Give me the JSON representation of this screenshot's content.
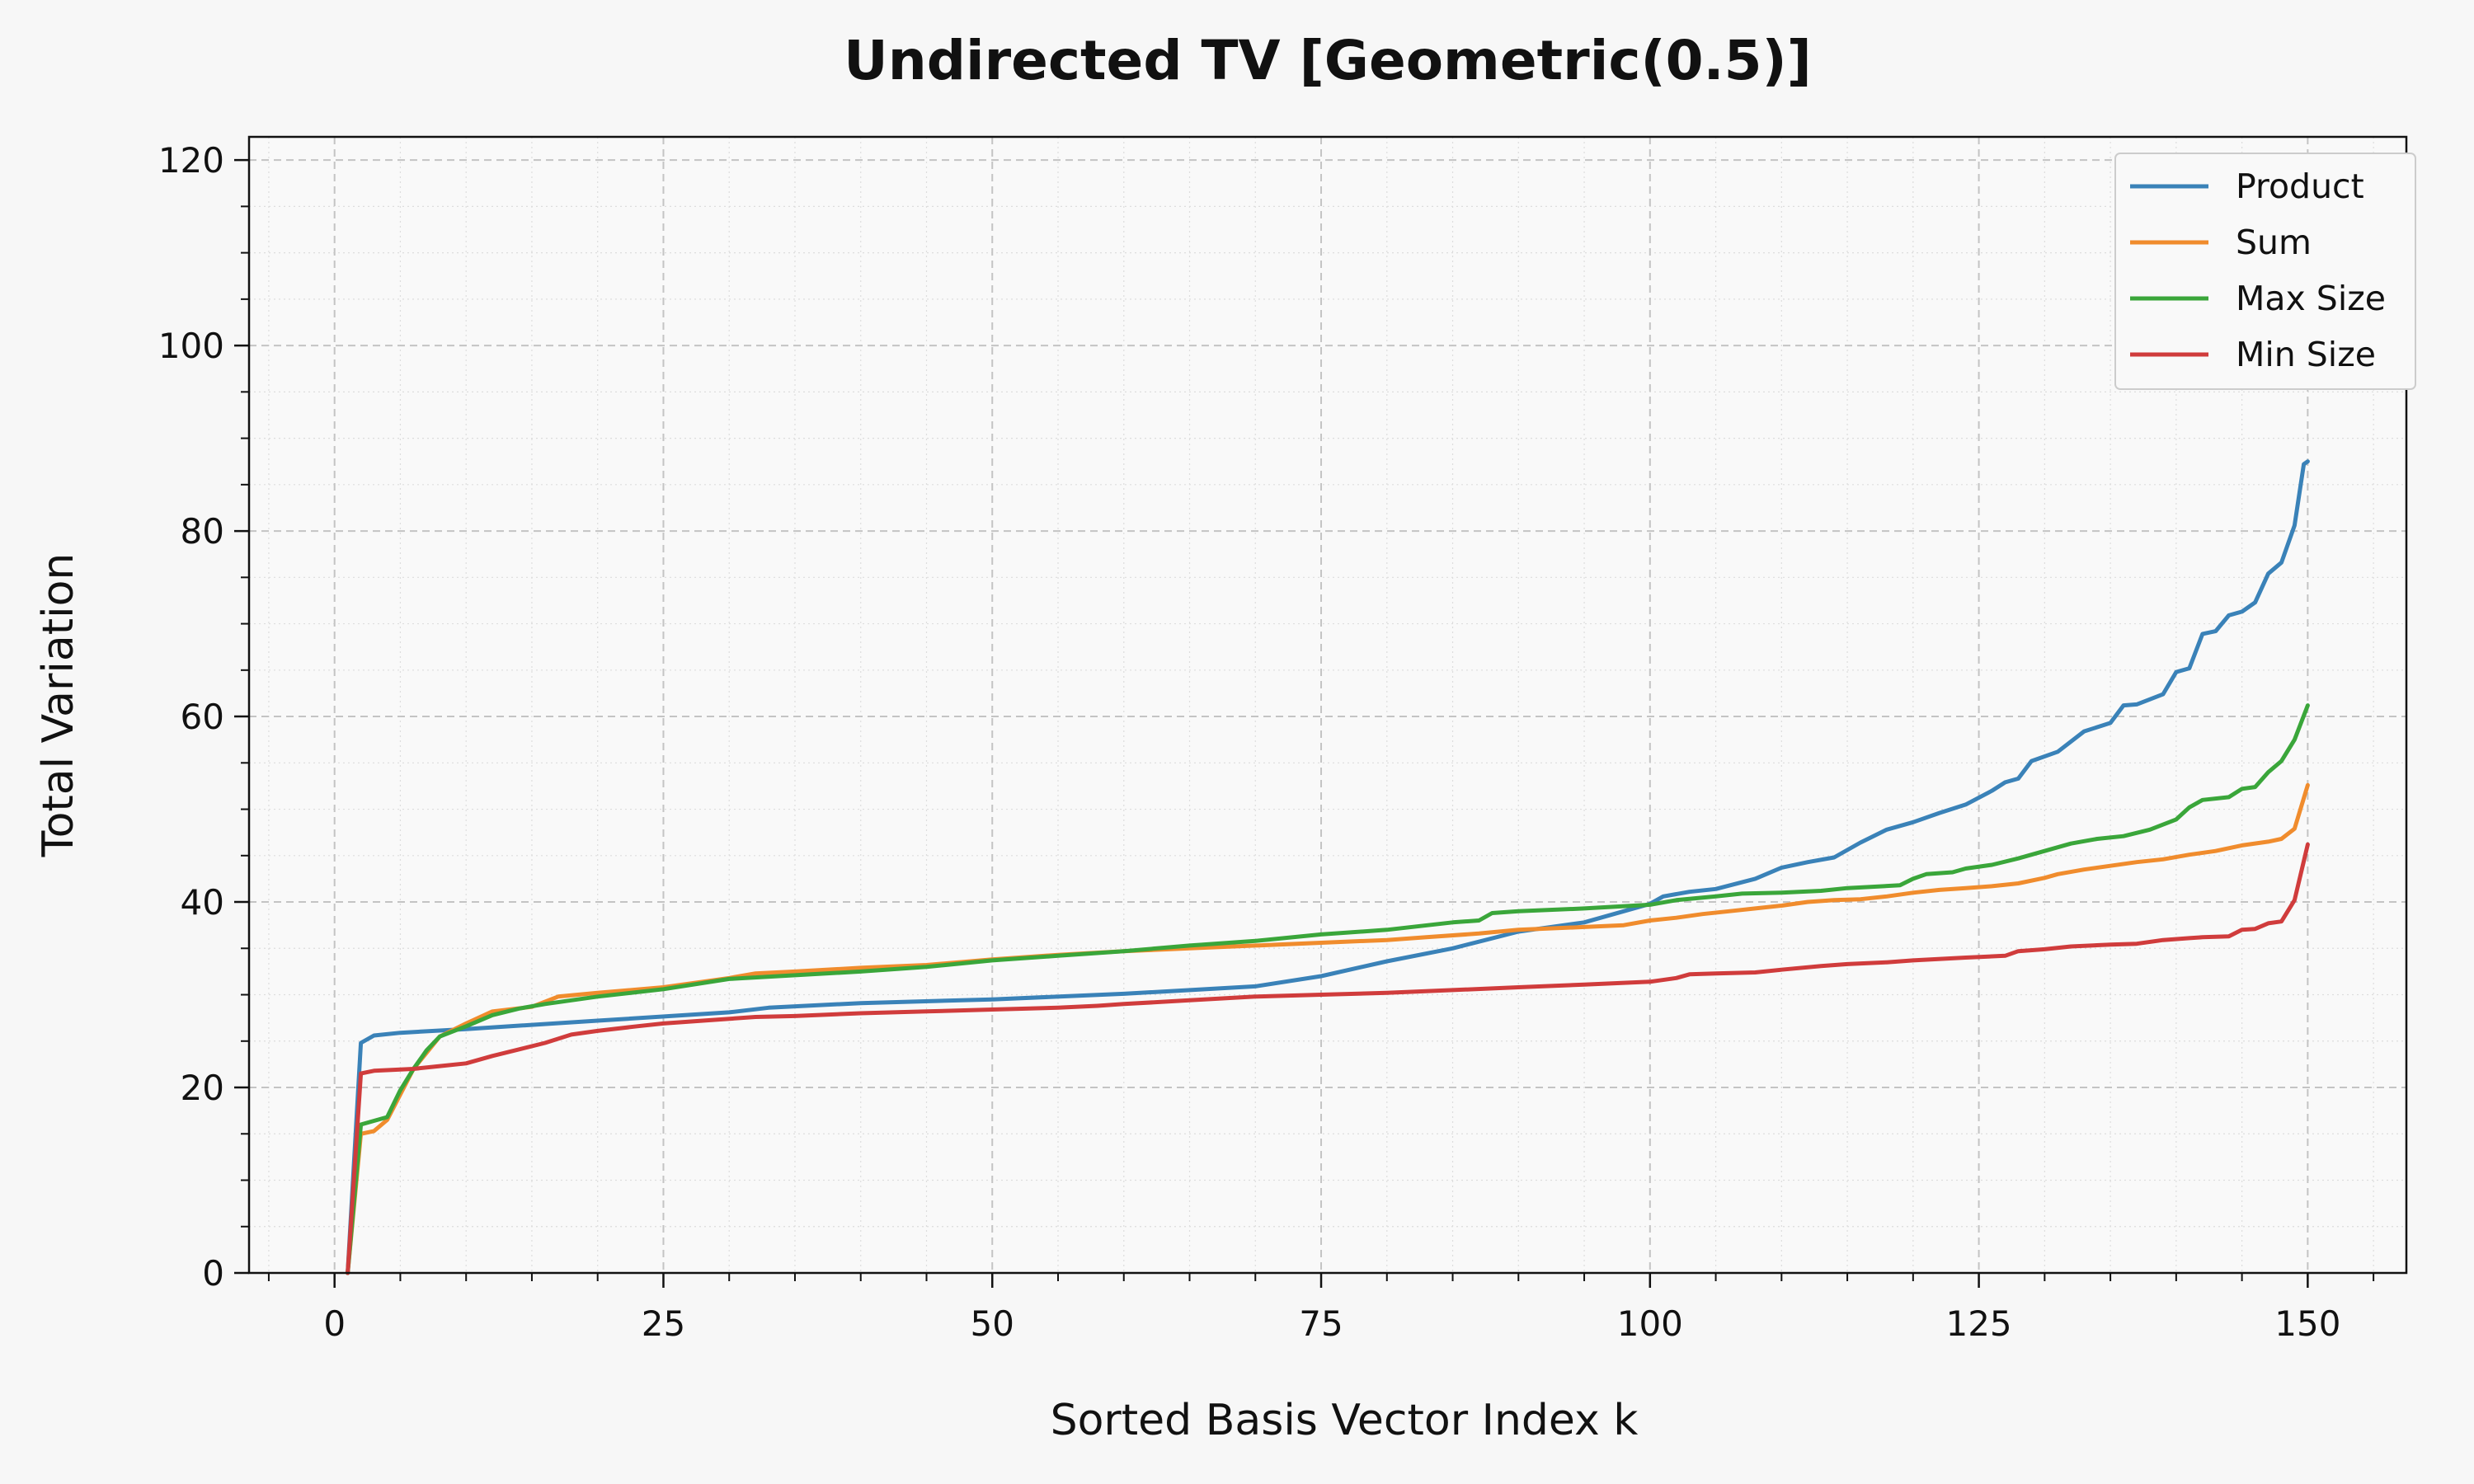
{
  "chart_data": {
    "type": "line",
    "title": "Undirected TV [Geometric(0.5)]",
    "xlabel": "Sorted Basis Vector Index k",
    "ylabel": "Total Variation",
    "xlim": [
      -6.5,
      157.5
    ],
    "ylim": [
      0,
      122.5
    ],
    "x_ticks": [
      0,
      25,
      50,
      75,
      100,
      125,
      150
    ],
    "y_ticks": [
      0,
      20,
      40,
      60,
      80,
      100,
      120
    ],
    "grid": true,
    "legend_position": "top-right",
    "series": [
      {
        "name": "Product",
        "color": "#3a82b8",
        "points": [
          [
            1,
            0
          ],
          [
            2,
            24.8
          ],
          [
            3,
            25.6
          ],
          [
            5,
            25.9
          ],
          [
            10,
            26.3
          ],
          [
            20,
            27.2
          ],
          [
            30,
            28.1
          ],
          [
            33,
            28.6
          ],
          [
            40,
            29.1
          ],
          [
            50,
            29.5
          ],
          [
            60,
            30.1
          ],
          [
            70,
            30.9
          ],
          [
            75,
            32.0
          ],
          [
            80,
            33.6
          ],
          [
            85,
            35.0
          ],
          [
            90,
            36.8
          ],
          [
            95,
            37.8
          ],
          [
            100,
            39.8
          ],
          [
            101,
            40.6
          ],
          [
            103,
            41.1
          ],
          [
            105,
            41.4
          ],
          [
            108,
            42.5
          ],
          [
            110,
            43.7
          ],
          [
            112,
            44.3
          ],
          [
            114,
            44.8
          ],
          [
            116,
            46.4
          ],
          [
            118,
            47.8
          ],
          [
            120,
            48.6
          ],
          [
            122,
            49.6
          ],
          [
            124,
            50.5
          ],
          [
            126,
            52.0
          ],
          [
            127,
            52.9
          ],
          [
            128,
            53.3
          ],
          [
            129,
            55.2
          ],
          [
            131,
            56.2
          ],
          [
            133,
            58.4
          ],
          [
            135,
            59.3
          ],
          [
            136,
            61.2
          ],
          [
            137,
            61.3
          ],
          [
            139,
            62.4
          ],
          [
            140,
            64.8
          ],
          [
            141,
            65.2
          ],
          [
            142,
            68.9
          ],
          [
            143,
            69.2
          ],
          [
            144,
            70.9
          ],
          [
            145,
            71.3
          ],
          [
            146,
            72.3
          ],
          [
            147,
            75.4
          ],
          [
            148,
            76.6
          ],
          [
            149,
            80.6
          ],
          [
            149.7,
            87.2
          ],
          [
            150,
            87.5
          ]
        ]
      },
      {
        "name": "Sum",
        "color": "#f08c2d",
        "points": [
          [
            1,
            0
          ],
          [
            2,
            15.0
          ],
          [
            3,
            15.3
          ],
          [
            4,
            16.5
          ],
          [
            6,
            22.0
          ],
          [
            8,
            25.5
          ],
          [
            10,
            26.9
          ],
          [
            12,
            28.2
          ],
          [
            15,
            28.7
          ],
          [
            17,
            29.8
          ],
          [
            20,
            30.2
          ],
          [
            25,
            30.8
          ],
          [
            30,
            31.8
          ],
          [
            32,
            32.3
          ],
          [
            35,
            32.5
          ],
          [
            40,
            32.9
          ],
          [
            45,
            33.2
          ],
          [
            50,
            33.8
          ],
          [
            55,
            34.3
          ],
          [
            60,
            34.7
          ],
          [
            65,
            35.0
          ],
          [
            70,
            35.3
          ],
          [
            75,
            35.6
          ],
          [
            80,
            35.9
          ],
          [
            83,
            36.2
          ],
          [
            87,
            36.6
          ],
          [
            90,
            37.0
          ],
          [
            95,
            37.3
          ],
          [
            98,
            37.5
          ],
          [
            100,
            38.0
          ],
          [
            102,
            38.3
          ],
          [
            104,
            38.7
          ],
          [
            106,
            39.0
          ],
          [
            108,
            39.3
          ],
          [
            110,
            39.6
          ],
          [
            112,
            40.0
          ],
          [
            114,
            40.2
          ],
          [
            116,
            40.3
          ],
          [
            118,
            40.6
          ],
          [
            120,
            41.0
          ],
          [
            122,
            41.3
          ],
          [
            124,
            41.5
          ],
          [
            126,
            41.7
          ],
          [
            128,
            42.0
          ],
          [
            130,
            42.6
          ],
          [
            131,
            43.0
          ],
          [
            133,
            43.5
          ],
          [
            135,
            43.9
          ],
          [
            137,
            44.3
          ],
          [
            139,
            44.6
          ],
          [
            141,
            45.1
          ],
          [
            143,
            45.5
          ],
          [
            145,
            46.1
          ],
          [
            147,
            46.5
          ],
          [
            148,
            46.8
          ],
          [
            149,
            47.9
          ],
          [
            150,
            52.6
          ]
        ]
      },
      {
        "name": "Max Size",
        "color": "#3aa63a",
        "points": [
          [
            1,
            0
          ],
          [
            2,
            16.0
          ],
          [
            3,
            16.4
          ],
          [
            4,
            16.8
          ],
          [
            5,
            19.7
          ],
          [
            6,
            22.0
          ],
          [
            7,
            24.0
          ],
          [
            8,
            25.5
          ],
          [
            10,
            26.6
          ],
          [
            12,
            27.8
          ],
          [
            14,
            28.5
          ],
          [
            16,
            29.0
          ],
          [
            20,
            29.8
          ],
          [
            25,
            30.6
          ],
          [
            30,
            31.7
          ],
          [
            35,
            32.1
          ],
          [
            40,
            32.5
          ],
          [
            45,
            33.0
          ],
          [
            50,
            33.7
          ],
          [
            55,
            34.2
          ],
          [
            60,
            34.7
          ],
          [
            65,
            35.3
          ],
          [
            70,
            35.8
          ],
          [
            75,
            36.5
          ],
          [
            80,
            37.0
          ],
          [
            85,
            37.8
          ],
          [
            87,
            38.0
          ],
          [
            88,
            38.8
          ],
          [
            90,
            39.0
          ],
          [
            95,
            39.3
          ],
          [
            100,
            39.7
          ],
          [
            102,
            40.2
          ],
          [
            105,
            40.6
          ],
          [
            107,
            40.9
          ],
          [
            110,
            41.0
          ],
          [
            113,
            41.2
          ],
          [
            115,
            41.5
          ],
          [
            119,
            41.8
          ],
          [
            120,
            42.5
          ],
          [
            121,
            43.0
          ],
          [
            123,
            43.2
          ],
          [
            124,
            43.6
          ],
          [
            126,
            44.0
          ],
          [
            128,
            44.7
          ],
          [
            130,
            45.5
          ],
          [
            132,
            46.3
          ],
          [
            134,
            46.8
          ],
          [
            136,
            47.1
          ],
          [
            138,
            47.8
          ],
          [
            140,
            48.9
          ],
          [
            141,
            50.2
          ],
          [
            142,
            51.0
          ],
          [
            144,
            51.3
          ],
          [
            145,
            52.2
          ],
          [
            146,
            52.4
          ],
          [
            147,
            54.0
          ],
          [
            148,
            55.2
          ],
          [
            149,
            57.5
          ],
          [
            150,
            61.2
          ]
        ]
      },
      {
        "name": "Min Size",
        "color": "#d03c3c",
        "points": [
          [
            1,
            0
          ],
          [
            2,
            21.5
          ],
          [
            3,
            21.8
          ],
          [
            6,
            22.0
          ],
          [
            8,
            22.3
          ],
          [
            10,
            22.6
          ],
          [
            12,
            23.4
          ],
          [
            14,
            24.1
          ],
          [
            16,
            24.8
          ],
          [
            18,
            25.7
          ],
          [
            20,
            26.1
          ],
          [
            23,
            26.6
          ],
          [
            25,
            26.9
          ],
          [
            28,
            27.2
          ],
          [
            32,
            27.6
          ],
          [
            35,
            27.7
          ],
          [
            40,
            28.0
          ],
          [
            45,
            28.2
          ],
          [
            50,
            28.4
          ],
          [
            55,
            28.6
          ],
          [
            58,
            28.8
          ],
          [
            60,
            29.0
          ],
          [
            65,
            29.4
          ],
          [
            70,
            29.8
          ],
          [
            75,
            30.0
          ],
          [
            80,
            30.2
          ],
          [
            85,
            30.5
          ],
          [
            90,
            30.8
          ],
          [
            95,
            31.1
          ],
          [
            100,
            31.4
          ],
          [
            102,
            31.8
          ],
          [
            103,
            32.2
          ],
          [
            105,
            32.3
          ],
          [
            108,
            32.4
          ],
          [
            110,
            32.7
          ],
          [
            113,
            33.1
          ],
          [
            115,
            33.3
          ],
          [
            118,
            33.5
          ],
          [
            120,
            33.7
          ],
          [
            124,
            34.0
          ],
          [
            127,
            34.2
          ],
          [
            128,
            34.7
          ],
          [
            130,
            34.9
          ],
          [
            132,
            35.2
          ],
          [
            135,
            35.4
          ],
          [
            137,
            35.5
          ],
          [
            139,
            35.9
          ],
          [
            141,
            36.1
          ],
          [
            142,
            36.2
          ],
          [
            144,
            36.3
          ],
          [
            145,
            37.0
          ],
          [
            146,
            37.1
          ],
          [
            147,
            37.7
          ],
          [
            148,
            37.9
          ],
          [
            149,
            40.2
          ],
          [
            150,
            46.2
          ]
        ]
      }
    ]
  }
}
